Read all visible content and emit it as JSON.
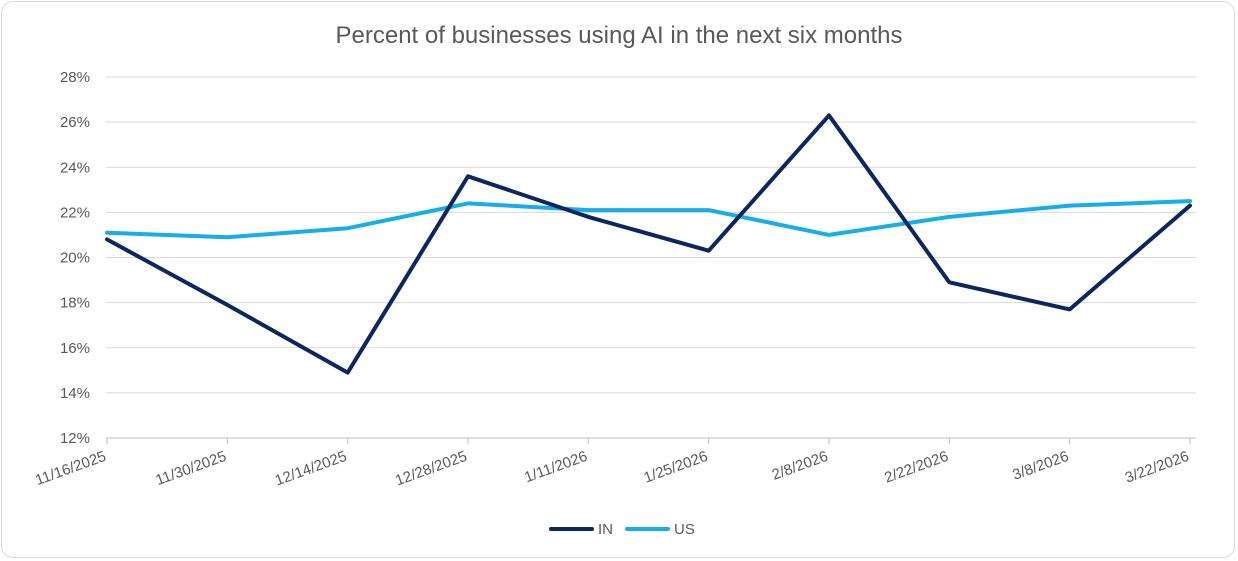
{
  "chart_data": {
    "type": "line",
    "title": "Percent of businesses using AI in the next six months",
    "xlabel": "",
    "ylabel": "",
    "categories": [
      "11/16/2025",
      "11/30/2025",
      "12/14/2025",
      "12/28/2025",
      "1/11/2026",
      "1/25/2026",
      "2/8/2026",
      "2/22/2026",
      "3/8/2026",
      "3/22/2026"
    ],
    "y_ticks": [
      "12%",
      "14%",
      "16%",
      "18%",
      "20%",
      "22%",
      "24%",
      "26%",
      "28%"
    ],
    "ylim": [
      12,
      28
    ],
    "grid": true,
    "legend_position": "bottom",
    "series": [
      {
        "name": "IN",
        "color": "#0b2660",
        "values": [
          20.8,
          17.9,
          14.9,
          23.6,
          21.8,
          20.3,
          26.3,
          18.9,
          17.7,
          22.3
        ]
      },
      {
        "name": "US",
        "color": "#16aee8",
        "values": [
          21.1,
          20.9,
          21.3,
          22.4,
          22.1,
          22.1,
          21.0,
          21.8,
          22.3,
          22.5
        ]
      }
    ]
  }
}
